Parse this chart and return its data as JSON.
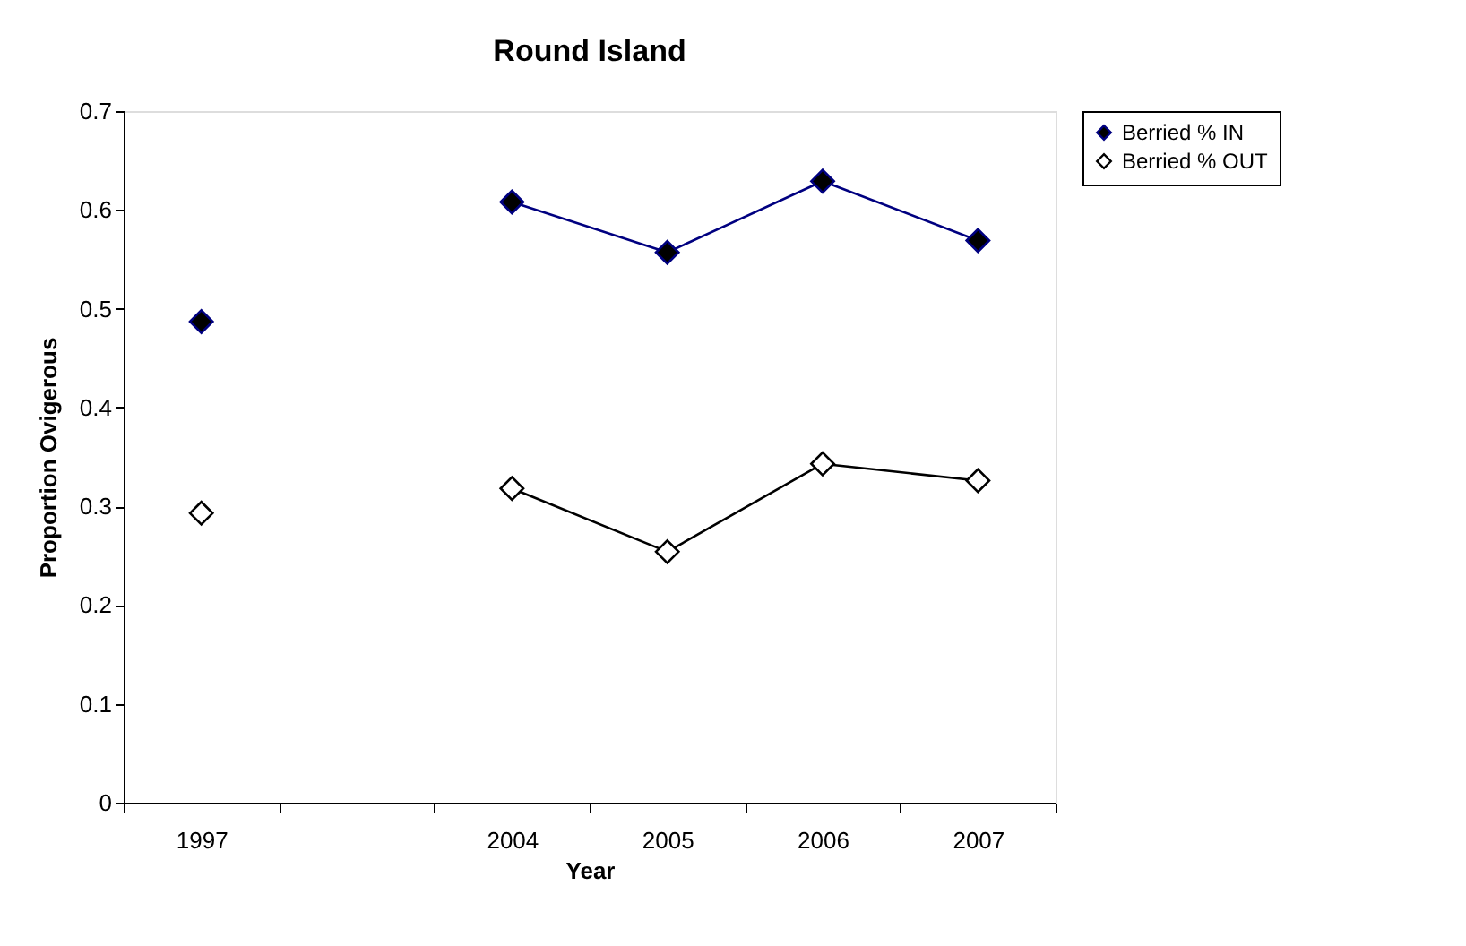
{
  "chart_data": {
    "type": "line",
    "title": "Round Island",
    "xlabel": "Year",
    "ylabel": "Proportion Ovigerous",
    "categories": [
      "1997",
      null,
      "2004",
      "2005",
      "2006",
      "2007"
    ],
    "series": [
      {
        "name": "Berried % IN",
        "color": "#000080",
        "values": [
          0.487,
          null,
          0.608,
          0.557,
          0.629,
          0.569
        ]
      },
      {
        "name": "Berried % OUT",
        "color": "#000000",
        "values": [
          0.293,
          null,
          0.318,
          0.254,
          0.343,
          0.326
        ]
      }
    ],
    "ylim": [
      0,
      0.7
    ],
    "yticks": [
      0,
      0.1,
      0.2,
      0.3,
      0.4,
      0.5,
      0.6,
      0.7
    ],
    "marker": "diamond",
    "line_style": "solid",
    "legend": "right",
    "grid": false
  }
}
